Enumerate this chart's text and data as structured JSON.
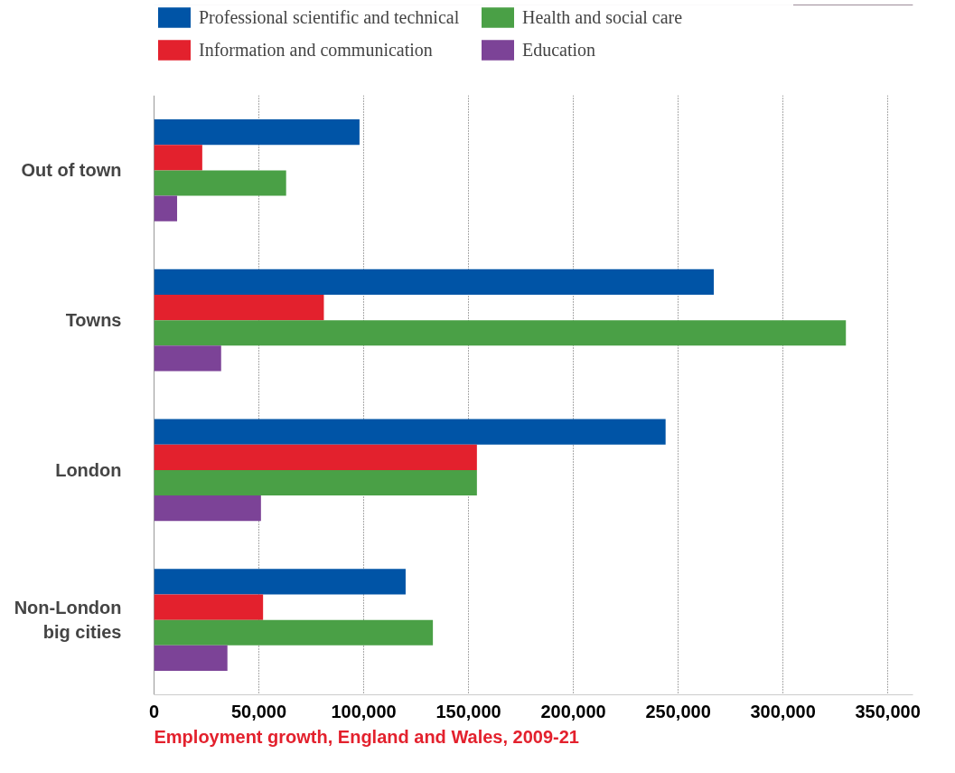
{
  "chart_data": {
    "type": "bar",
    "orientation": "horizontal",
    "categories": [
      "Out of town",
      "Towns",
      "London",
      "Non-London\nbig cities"
    ],
    "series": [
      {
        "name": "Professional scientific and technical",
        "color": "#0054a6",
        "values": [
          98000,
          267000,
          244000,
          120000
        ]
      },
      {
        "name": "Information and communication",
        "color": "#e3212d",
        "values": [
          23000,
          81000,
          154000,
          52000
        ]
      },
      {
        "name": "Health and social care",
        "color": "#4aa046",
        "values": [
          63000,
          330000,
          154000,
          133000
        ]
      },
      {
        "name": "Education",
        "color": "#7c4397",
        "values": [
          11000,
          32000,
          51000,
          35000
        ]
      }
    ],
    "xlim": [
      0,
      362000
    ],
    "xticks": [
      {
        "value": 0,
        "label": "0"
      },
      {
        "value": 50000,
        "label": "50,000"
      },
      {
        "value": 100000,
        "label": "100,000"
      },
      {
        "value": 150000,
        "label": "150,000"
      },
      {
        "value": 200000,
        "label": "200,000"
      },
      {
        "value": 250000,
        "label": "250,000"
      },
      {
        "value": 300000,
        "label": "300,000"
      },
      {
        "value": 350000,
        "label": "350,000"
      }
    ],
    "grid": "x",
    "legend": "top",
    "annotations": [
      "Employment growth, England and Wales, 2009-21"
    ]
  }
}
